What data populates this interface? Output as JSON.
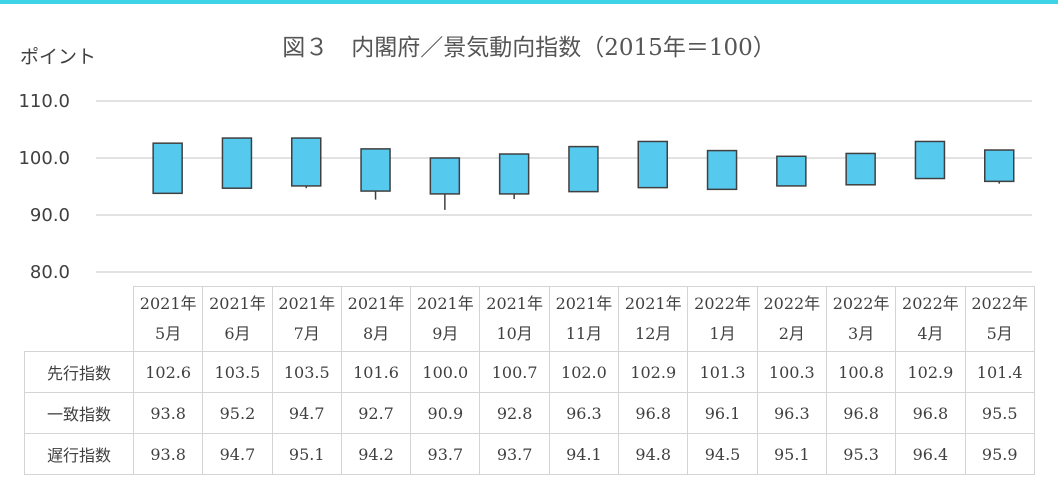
{
  "title": "図３　内閣府／景気動向指数（2015年＝100）",
  "unit_label": "ポイント",
  "colors": {
    "box_fill": "#56c9ee",
    "box_stroke": "#404040",
    "gridline": "#d9d9d9",
    "top_bar": "#3fd3e8"
  },
  "chart_data": {
    "type": "candlestick",
    "title": "図３　内閣府／景気動向指数（2015年＝100）",
    "ylabel": "ポイント",
    "ylim": [
      80,
      110
    ],
    "yticks": [
      "80.0",
      "90.0",
      "100.0",
      "110.0"
    ],
    "grid": true,
    "categories": [
      [
        "2021年",
        "5月"
      ],
      [
        "2021年",
        "6月"
      ],
      [
        "2021年",
        "7月"
      ],
      [
        "2021年",
        "8月"
      ],
      [
        "2021年",
        "9月"
      ],
      [
        "2021年",
        "10月"
      ],
      [
        "2021年",
        "11月"
      ],
      [
        "2021年",
        "12月"
      ],
      [
        "2022年",
        "1月"
      ],
      [
        "2022年",
        "2月"
      ],
      [
        "2022年",
        "3月"
      ],
      [
        "2022年",
        "4月"
      ],
      [
        "2022年",
        "5月"
      ]
    ],
    "series": [
      {
        "name": "先行指数",
        "values": [
          102.6,
          103.5,
          103.5,
          101.6,
          100.0,
          100.7,
          102.0,
          102.9,
          101.3,
          100.3,
          100.8,
          102.9,
          101.4
        ]
      },
      {
        "name": "一致指数",
        "values": [
          93.8,
          95.2,
          94.7,
          92.7,
          90.9,
          92.8,
          96.3,
          96.8,
          96.1,
          96.3,
          96.8,
          96.8,
          95.5
        ]
      },
      {
        "name": "遅行指数",
        "values": [
          93.8,
          94.7,
          95.1,
          94.2,
          93.7,
          93.7,
          94.1,
          94.8,
          94.5,
          95.1,
          95.3,
          96.4,
          95.9
        ]
      }
    ]
  }
}
